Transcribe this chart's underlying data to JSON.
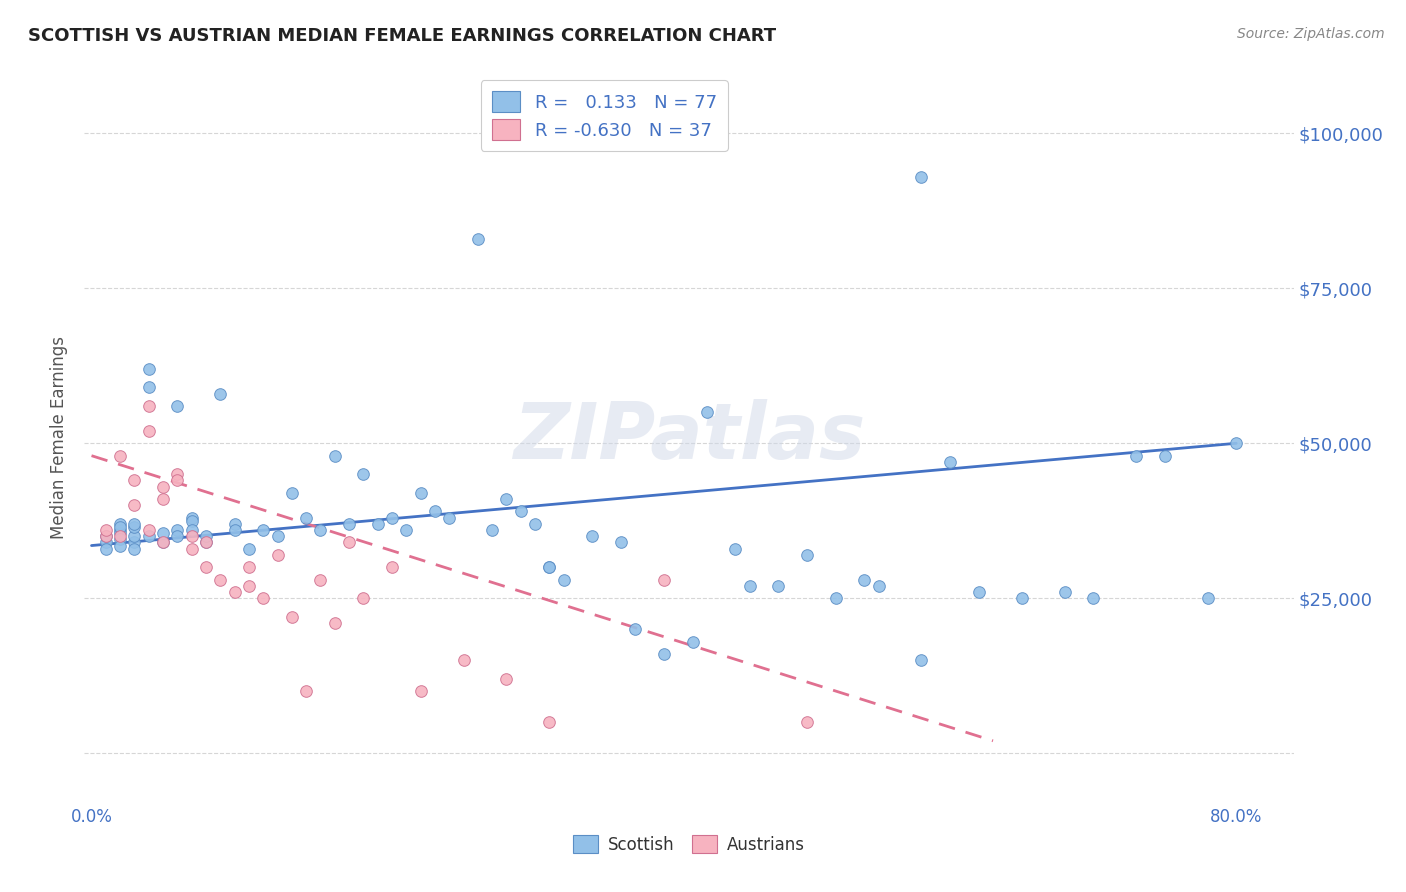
{
  "title": "SCOTTISH VS AUSTRIAN MEDIAN FEMALE EARNINGS CORRELATION CHART",
  "source": "Source: ZipAtlas.com",
  "ylabel": "Median Female Earnings",
  "yticks": [
    0,
    25000,
    50000,
    75000,
    100000
  ],
  "ytick_labels": [
    "",
    "$25,000",
    "$50,000",
    "$75,000",
    "$100,000"
  ],
  "background_color": "#ffffff",
  "scottish_color": "#92C0E8",
  "austrian_color": "#F7B3C0",
  "scottish_edge_color": "#5B8EC5",
  "austrian_edge_color": "#D07090",
  "scottish_line_color": "#4472C4",
  "austrian_line_color": "#E07090",
  "label_color": "#4472C4",
  "grid_color": "#cccccc",
  "scottish_scatter_x": [
    0.01,
    0.01,
    0.01,
    0.02,
    0.02,
    0.02,
    0.02,
    0.02,
    0.02,
    0.03,
    0.03,
    0.03,
    0.03,
    0.03,
    0.04,
    0.04,
    0.04,
    0.05,
    0.05,
    0.06,
    0.06,
    0.06,
    0.07,
    0.07,
    0.07,
    0.08,
    0.08,
    0.09,
    0.1,
    0.1,
    0.11,
    0.12,
    0.13,
    0.14,
    0.15,
    0.16,
    0.17,
    0.18,
    0.19,
    0.2,
    0.21,
    0.22,
    0.23,
    0.24,
    0.25,
    0.27,
    0.28,
    0.29,
    0.3,
    0.31,
    0.32,
    0.33,
    0.35,
    0.37,
    0.38,
    0.4,
    0.42,
    0.43,
    0.45,
    0.46,
    0.48,
    0.5,
    0.52,
    0.54,
    0.55,
    0.58,
    0.6,
    0.62,
    0.65,
    0.68,
    0.7,
    0.73,
    0.75,
    0.78,
    0.8,
    0.58,
    0.32
  ],
  "scottish_scatter_y": [
    34000,
    35000,
    33000,
    36000,
    35500,
    34500,
    33500,
    37000,
    36500,
    34000,
    35000,
    33000,
    36500,
    37000,
    62000,
    59000,
    35000,
    34000,
    35500,
    36000,
    35000,
    56000,
    38000,
    37500,
    36000,
    34000,
    35000,
    58000,
    37000,
    36000,
    33000,
    36000,
    35000,
    42000,
    38000,
    36000,
    48000,
    37000,
    45000,
    37000,
    38000,
    36000,
    42000,
    39000,
    38000,
    83000,
    36000,
    41000,
    39000,
    37000,
    30000,
    28000,
    35000,
    34000,
    20000,
    16000,
    18000,
    55000,
    33000,
    27000,
    27000,
    32000,
    25000,
    28000,
    27000,
    15000,
    47000,
    26000,
    25000,
    26000,
    25000,
    48000,
    48000,
    25000,
    50000,
    93000,
    30000
  ],
  "austrian_scatter_x": [
    0.01,
    0.01,
    0.02,
    0.02,
    0.03,
    0.03,
    0.04,
    0.04,
    0.04,
    0.05,
    0.05,
    0.05,
    0.06,
    0.06,
    0.07,
    0.07,
    0.08,
    0.08,
    0.09,
    0.1,
    0.11,
    0.11,
    0.12,
    0.13,
    0.14,
    0.15,
    0.16,
    0.17,
    0.18,
    0.19,
    0.21,
    0.23,
    0.26,
    0.29,
    0.32,
    0.4,
    0.5
  ],
  "austrian_scatter_y": [
    35000,
    36000,
    48000,
    35000,
    44000,
    40000,
    56000,
    52000,
    36000,
    34000,
    43000,
    41000,
    45000,
    44000,
    35000,
    33000,
    34000,
    30000,
    28000,
    26000,
    30000,
    27000,
    25000,
    32000,
    22000,
    10000,
    28000,
    21000,
    34000,
    25000,
    30000,
    10000,
    15000,
    12000,
    5000,
    28000,
    5000
  ],
  "scottish_trend_x": [
    0.0,
    0.8
  ],
  "scottish_trend_y": [
    33500,
    50000
  ],
  "austrian_trend_x": [
    0.0,
    0.63
  ],
  "austrian_trend_y": [
    48000,
    2000
  ],
  "xlim": [
    -0.005,
    0.84
  ],
  "ylim": [
    -8000,
    110000
  ],
  "xtick_positions": [
    0.0,
    0.1,
    0.2,
    0.3,
    0.4,
    0.5,
    0.6,
    0.7,
    0.8
  ],
  "xtick_labels": [
    "0.0%",
    "",
    "",
    "",
    "",
    "",
    "",
    "",
    "80.0%"
  ]
}
